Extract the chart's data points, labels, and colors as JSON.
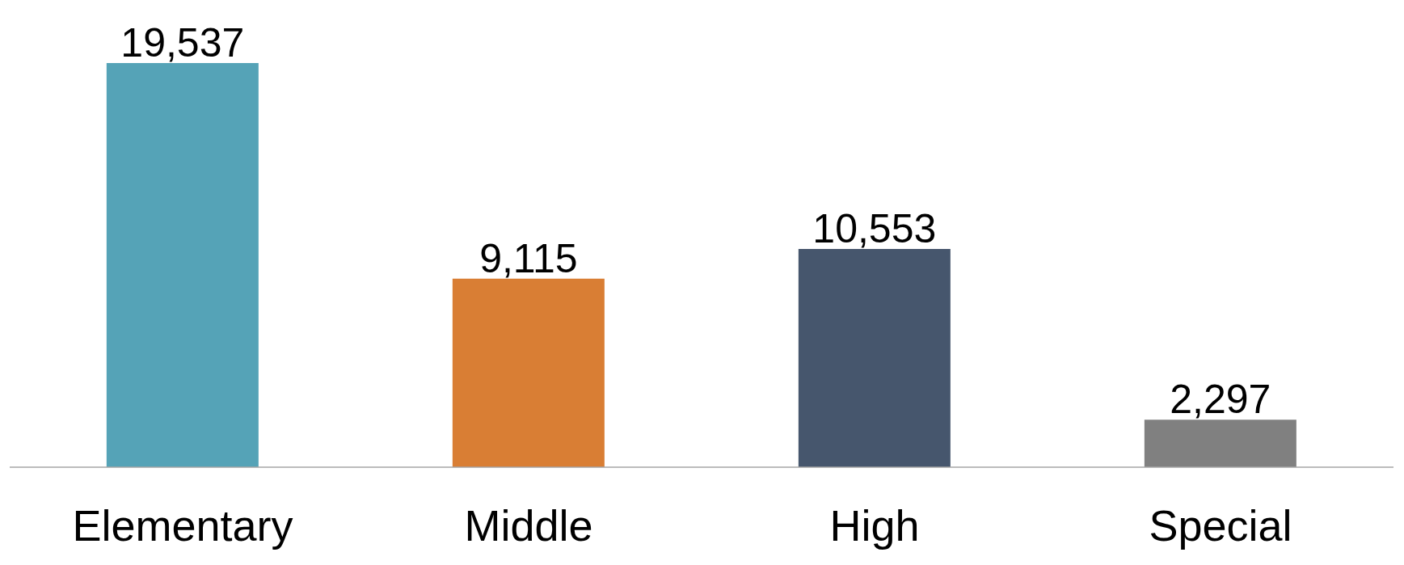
{
  "chart_data": {
    "type": "bar",
    "categories": [
      "Elementary",
      "Middle",
      "High",
      "Special"
    ],
    "values": [
      19537,
      9115,
      10553,
      2297
    ],
    "colors": [
      "#55a3b7",
      "#d97e34",
      "#46566d",
      "#808080"
    ],
    "value_labels": [
      "19,537",
      "9,115",
      "10,553",
      "2,297"
    ],
    "grid": false,
    "legend": false
  }
}
